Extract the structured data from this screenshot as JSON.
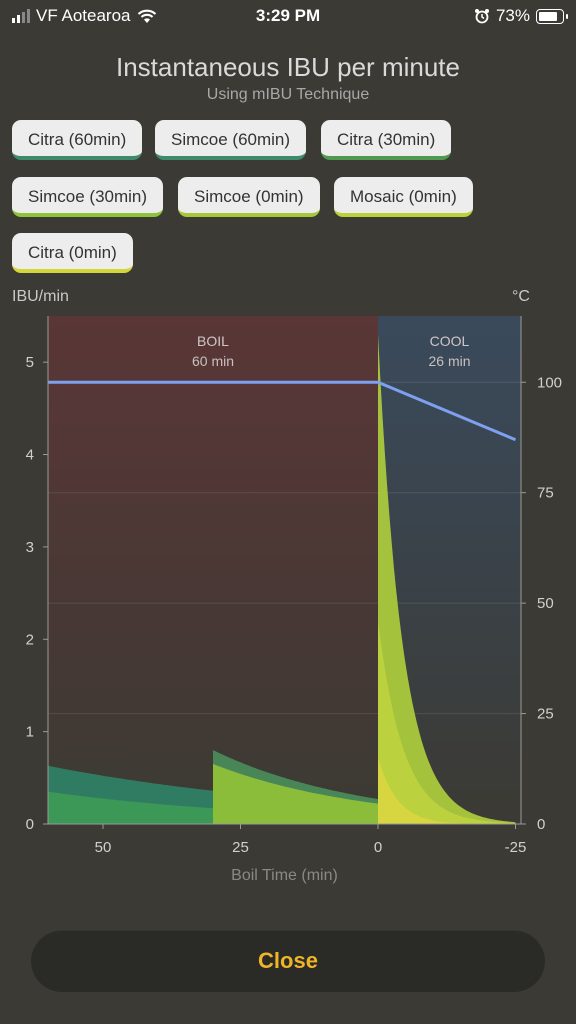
{
  "status_bar": {
    "carrier": "VF Aotearoa",
    "time": "3:29 PM",
    "battery": "73%"
  },
  "title": "Instantaneous IBU per minute",
  "subtitle": "Using mIBU Technique",
  "hops": [
    {
      "label": "Citra (60min)",
      "color": "#3f8a6a"
    },
    {
      "label": "Simcoe (60min)",
      "color": "#3f8a6a"
    },
    {
      "label": "Citra (30min)",
      "color": "#4f9a50"
    },
    {
      "label": "Simcoe (30min)",
      "color": "#8ec33a"
    },
    {
      "label": "Simcoe (0min)",
      "color": "#a8c83a"
    },
    {
      "label": "Mosaic (0min)",
      "color": "#bcd13a"
    },
    {
      "label": "Citra (0min)",
      "color": "#d6d63a"
    }
  ],
  "close_label": "Close",
  "colors": {
    "accent": "#f0b429",
    "background": "#3b3a34",
    "temperature_line": "#7da0ef",
    "boil_region": "#5a3636",
    "cool_region": "#3a4a5c"
  },
  "chart_data": {
    "type": "area",
    "xlabel": "Boil Time (min)",
    "ylabel_left": "IBU/min",
    "ylabel_right": "°C",
    "x_ticks": [
      50,
      25,
      0,
      -25
    ],
    "y_left_ticks": [
      0,
      1,
      2,
      3,
      4,
      5
    ],
    "y_right_ticks": [
      0,
      25,
      50,
      75,
      100
    ],
    "xlim": [
      60,
      -26
    ],
    "ylim_left": [
      0,
      5.5
    ],
    "ylim_right": [
      0,
      115
    ],
    "regions": [
      {
        "label": "BOIL",
        "sublabel": "60 min",
        "x_start": 60,
        "x_end": 0
      },
      {
        "label": "COOL",
        "sublabel": "26 min",
        "x_start": 0,
        "x_end": -26
      }
    ],
    "series": [
      {
        "name": "Citra (60min)",
        "stack_top": [
          [
            60,
            0.63
          ],
          [
            30,
            0.36
          ]
        ]
      },
      {
        "name": "Simcoe (60min)",
        "stack_top": [
          [
            60,
            0.35
          ],
          [
            30,
            0.17
          ]
        ]
      },
      {
        "name": "Citra (30min)",
        "stack_top": [
          [
            30,
            0.8
          ],
          [
            0,
            0.27
          ]
        ]
      },
      {
        "name": "Simcoe (30min)",
        "stack_top": [
          [
            30,
            0.65
          ],
          [
            0,
            0.22
          ]
        ]
      },
      {
        "name": "Simcoe (0min)",
        "stack_top": [
          [
            0,
            5.3
          ],
          [
            -25,
            0.02
          ]
        ]
      },
      {
        "name": "Mosaic (0min)",
        "stack_top": [
          [
            0,
            2.2
          ],
          [
            -25,
            0.01
          ]
        ]
      },
      {
        "name": "Citra (0min)",
        "stack_top": [
          [
            0,
            0.72
          ],
          [
            -25,
            0.0
          ]
        ]
      }
    ],
    "temperature": {
      "name": "Temperature",
      "points": [
        [
          60,
          100
        ],
        [
          0,
          100
        ],
        [
          -25,
          87
        ]
      ]
    }
  }
}
